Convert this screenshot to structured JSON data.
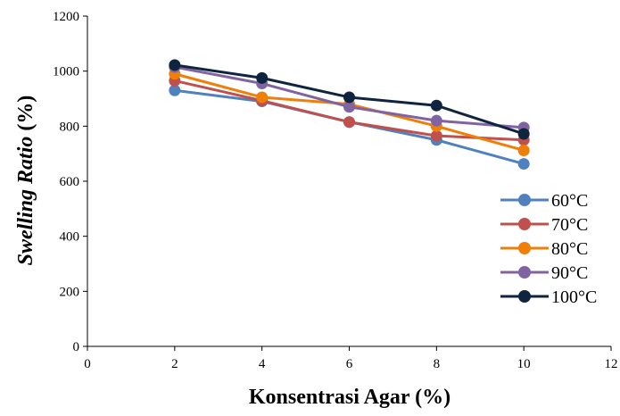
{
  "chart_data": {
    "type": "line",
    "title": "",
    "xlabel": "Konsentrasi Agar (%)",
    "ylabel_italic": "Swelling Ratio",
    "ylabel_suffix": " (%)",
    "xlim": [
      0,
      12
    ],
    "ylim": [
      0,
      1200
    ],
    "xticks": [
      0,
      2,
      4,
      6,
      8,
      10,
      12
    ],
    "yticks": [
      0,
      200,
      400,
      600,
      800,
      1000,
      1200
    ],
    "grid": false,
    "legend_position": "right",
    "x": [
      2,
      4,
      6,
      8,
      10
    ],
    "series": [
      {
        "name": "60°C",
        "color": "#4e81bd",
        "values": [
          930,
          890,
          815,
          750,
          663
        ]
      },
      {
        "name": "70°C",
        "color": "#c0504d",
        "values": [
          965,
          893,
          815,
          765,
          750
        ]
      },
      {
        "name": "80°C",
        "color": "#f07f09",
        "values": [
          990,
          905,
          880,
          800,
          712
        ]
      },
      {
        "name": "90°C",
        "color": "#8064a2",
        "values": [
          1015,
          955,
          870,
          820,
          795
        ]
      },
      {
        "name": "100°C",
        "color": "#0f243e",
        "values": [
          1022,
          975,
          905,
          875,
          772
        ]
      }
    ]
  }
}
